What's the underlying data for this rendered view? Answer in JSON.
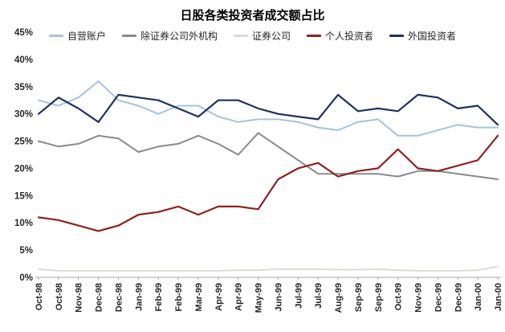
{
  "title": "日股各类投资者成交额占比",
  "chart_data": {
    "type": "line",
    "title": "日股各类投资者成交额占比",
    "categories": [
      "Oct-98",
      "Oct-98",
      "Nov-98",
      "Dec-98",
      "Dec-98",
      "Jan-99",
      "Feb-99",
      "Feb-99",
      "Mar-99",
      "Apr-99",
      "Apr-99",
      "May-99",
      "Jun-99",
      "Jul-99",
      "Jul-99",
      "Aug-99",
      "Sep-99",
      "Sep-99",
      "Oct-99",
      "Nov-99",
      "Dec-99",
      "Dec-99",
      "Jan-00",
      "Jan-00"
    ],
    "series": [
      {
        "name": "自营账户",
        "color": "#A6C3DE",
        "stroke_width": 2,
        "values": [
          32.5,
          31.5,
          33,
          36,
          32.5,
          31.5,
          30,
          31.5,
          31.5,
          29.5,
          28.5,
          29,
          29,
          28.5,
          27.5,
          27,
          28.5,
          29,
          26,
          26,
          27,
          28,
          27.5,
          27.5
        ]
      },
      {
        "name": "除证券公司外机构",
        "color": "#8A8A8A",
        "stroke_width": 2,
        "values": [
          25,
          24,
          24.5,
          26,
          25.5,
          23,
          24,
          24.5,
          26,
          24.5,
          22.5,
          26.5,
          24,
          21.5,
          19,
          19,
          19,
          19,
          18.5,
          19.5,
          19.5,
          19,
          18.5,
          18
        ]
      },
      {
        "name": "证券公司",
        "color": "#DCD9D0",
        "stroke_width": 1.8,
        "values": [
          1.5,
          1.2,
          1.2,
          1.2,
          1.2,
          1.2,
          1.2,
          1.2,
          1.2,
          1.2,
          1.3,
          1.3,
          1.5,
          1.5,
          1.5,
          1.4,
          1.4,
          1.5,
          1.3,
          1.2,
          1.2,
          1.2,
          1.3,
          2
        ]
      },
      {
        "name": "个人投资者",
        "color": "#8C2322",
        "stroke_width": 2.2,
        "values": [
          11,
          10.5,
          9.5,
          8.5,
          9.5,
          11.5,
          12,
          13,
          11.5,
          13,
          13,
          12.5,
          18,
          20,
          21,
          18.5,
          19.5,
          20,
          23.5,
          20,
          19.5,
          20.5,
          21.5,
          26
        ]
      },
      {
        "name": "外国投资者",
        "color": "#20315F",
        "stroke_width": 2.2,
        "values": [
          30,
          33,
          31,
          28.5,
          33.5,
          33,
          32.5,
          31,
          29.5,
          32.5,
          32.5,
          31,
          30,
          29.5,
          29,
          33.5,
          30.5,
          31,
          30.5,
          33.5,
          33,
          31,
          31.5,
          28
        ]
      }
    ],
    "ylim": [
      0,
      45
    ],
    "ytick_step": 5,
    "ytick_labels": [
      "0%",
      "5%",
      "10%",
      "15%",
      "20%",
      "25%",
      "30%",
      "35%",
      "40%",
      "45%"
    ],
    "grid": false,
    "legend_position": "top"
  }
}
